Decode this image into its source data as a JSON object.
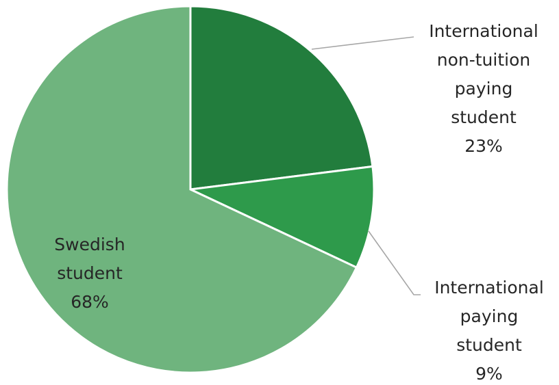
{
  "chart_data": {
    "type": "pie",
    "title": "",
    "slices": [
      {
        "name": "International non-tuition paying student",
        "value": 23,
        "label_lines": [
          "International",
          "non-tuition",
          "paying",
          "student",
          "23%"
        ],
        "color": "#227d3d"
      },
      {
        "name": "International paying student",
        "value": 9,
        "label_lines": [
          "International",
          "paying",
          "student",
          "9%"
        ],
        "color": "#2e9a4b"
      },
      {
        "name": "Swedish student",
        "value": 68,
        "label_lines": [
          "Swedish",
          "student",
          "68%"
        ],
        "color": "#6fb47e"
      }
    ]
  }
}
